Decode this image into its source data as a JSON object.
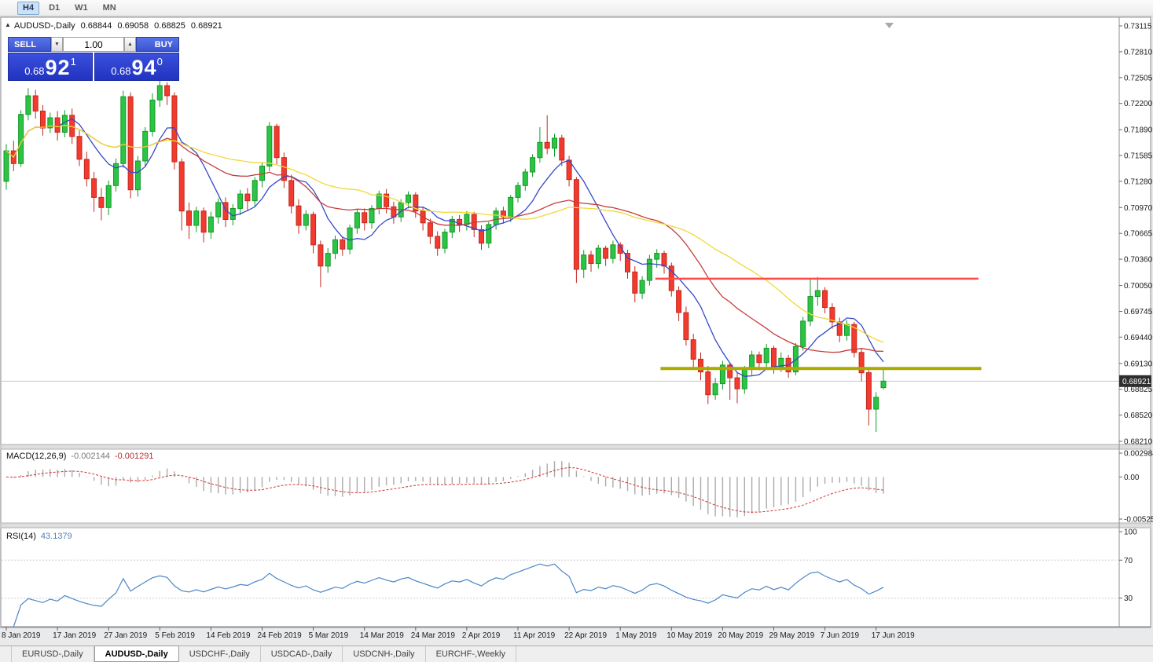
{
  "toolbar": {
    "timeframes": [
      {
        "label": "H4",
        "active": true
      },
      {
        "label": "D1",
        "active": false
      },
      {
        "label": "W1",
        "active": false
      },
      {
        "label": "MN",
        "active": false
      }
    ]
  },
  "chart_header": {
    "collapse_icon": "▲",
    "symbol": "AUDUSD-,Daily",
    "open": "0.68844",
    "high": "0.69058",
    "low": "0.68825",
    "close": "0.68921"
  },
  "trade_panel": {
    "sell_label": "SELL",
    "buy_label": "BUY",
    "volume": "1.00",
    "spin_down_icon": "▼",
    "spin_up_icon": "▲",
    "sell_price": {
      "base": "0.68",
      "big": "92",
      "sup": "1"
    },
    "buy_price": {
      "base": "0.68",
      "big": "94",
      "sup": "0"
    }
  },
  "price_axis": {
    "labels": [
      "0.73115",
      "0.72810",
      "0.72505",
      "0.72200",
      "0.71890",
      "0.71585",
      "0.71280",
      "0.70970",
      "0.70665",
      "0.70360",
      "0.70050",
      "0.69745",
      "0.69440",
      "0.69130",
      "0.68825",
      "0.68520",
      "0.68210"
    ],
    "current_price": "0.68921"
  },
  "indicators": {
    "macd": {
      "label": "MACD(12,26,9)",
      "value_main": "-0.002144",
      "value_signal": "-0.001291",
      "axis_labels": [
        "0.002984",
        "0.00",
        "-0.005256"
      ],
      "params": {
        "fast": 12,
        "slow": 26,
        "signal": 9
      },
      "histogram_color": "#ababab",
      "signal_color": "#d23434"
    },
    "rsi": {
      "label": "RSI(14)",
      "value": "43.1379",
      "axis_labels": [
        "100",
        "70",
        "30"
      ],
      "period": 14,
      "levels": [
        70,
        30
      ],
      "line_color": "#4a86c8"
    }
  },
  "chart_data": {
    "type": "candlestick",
    "symbol": "AUDUSD",
    "timeframe": "Daily",
    "title": "AUDUSD-,Daily",
    "ylim": [
      0.6821,
      0.73115
    ],
    "x_label_every": 7,
    "x_labels": [
      "8 Jan 2019",
      "17 Jan 2019",
      "27 Jan 2019",
      "5 Feb 2019",
      "14 Feb 2019",
      "24 Feb 2019",
      "5 Mar 2019",
      "14 Mar 2019",
      "24 Mar 2019",
      "2 Apr 2019",
      "11 Apr 2019",
      "22 Apr 2019",
      "1 May 2019",
      "10 May 2019",
      "20 May 2019",
      "29 May 2019",
      "7 Jun 2019",
      "17 Jun 2019"
    ],
    "current_price": 0.68921,
    "moving_averages": [
      {
        "period": 8,
        "color": "#3848c8"
      },
      {
        "period": 21,
        "color": "#c83c3c"
      },
      {
        "period": 34,
        "color": "#f0d838"
      }
    ],
    "hlines": [
      {
        "price": 0.7013,
        "color": "#ff4a4a",
        "width": 2.5,
        "from_index": 88.8,
        "to_index": 133.0
      },
      {
        "price": 0.6907,
        "color": "#aaaa00",
        "width": 4,
        "from_index": 89.5,
        "to_index": 133.4
      }
    ],
    "candles": [
      [
        0.7128,
        0.7172,
        0.7118,
        0.7164
      ],
      [
        0.7164,
        0.7176,
        0.714,
        0.7149
      ],
      [
        0.7149,
        0.7212,
        0.7145,
        0.7207
      ],
      [
        0.7207,
        0.7238,
        0.72,
        0.7229
      ],
      [
        0.7229,
        0.7236,
        0.7202,
        0.7211
      ],
      [
        0.7211,
        0.7218,
        0.7182,
        0.7191
      ],
      [
        0.7191,
        0.7209,
        0.7185,
        0.7203
      ],
      [
        0.7203,
        0.7211,
        0.7176,
        0.7186
      ],
      [
        0.7186,
        0.7212,
        0.718,
        0.7206
      ],
      [
        0.7206,
        0.7214,
        0.7172,
        0.7181
      ],
      [
        0.7181,
        0.7188,
        0.7146,
        0.7154
      ],
      [
        0.7154,
        0.7163,
        0.7122,
        0.7131
      ],
      [
        0.7131,
        0.7139,
        0.7092,
        0.7109
      ],
      [
        0.7109,
        0.712,
        0.7082,
        0.7097
      ],
      [
        0.7097,
        0.7129,
        0.7088,
        0.7123
      ],
      [
        0.7123,
        0.7155,
        0.7116,
        0.7149
      ],
      [
        0.7149,
        0.7235,
        0.7144,
        0.7228
      ],
      [
        0.7228,
        0.7233,
        0.7108,
        0.7118
      ],
      [
        0.7118,
        0.7158,
        0.711,
        0.7152
      ],
      [
        0.7152,
        0.7192,
        0.7146,
        0.7187
      ],
      [
        0.7187,
        0.7232,
        0.7181,
        0.7224
      ],
      [
        0.7224,
        0.7248,
        0.7216,
        0.7241
      ],
      [
        0.7241,
        0.7245,
        0.7218,
        0.7229
      ],
      [
        0.7229,
        0.7233,
        0.7142,
        0.7151
      ],
      [
        0.7151,
        0.7155,
        0.707,
        0.7093
      ],
      [
        0.7093,
        0.7103,
        0.706,
        0.7076
      ],
      [
        0.7076,
        0.7098,
        0.7068,
        0.7093
      ],
      [
        0.7093,
        0.7097,
        0.7056,
        0.7068
      ],
      [
        0.7068,
        0.7092,
        0.706,
        0.7086
      ],
      [
        0.7086,
        0.7108,
        0.7078,
        0.7103
      ],
      [
        0.7103,
        0.7109,
        0.7074,
        0.7083
      ],
      [
        0.7083,
        0.7101,
        0.7076,
        0.7096
      ],
      [
        0.7096,
        0.7118,
        0.7088,
        0.7113
      ],
      [
        0.7113,
        0.712,
        0.7094,
        0.7105
      ],
      [
        0.7105,
        0.7133,
        0.7098,
        0.7129
      ],
      [
        0.7129,
        0.715,
        0.7121,
        0.7146
      ],
      [
        0.7146,
        0.7198,
        0.714,
        0.7193
      ],
      [
        0.7193,
        0.7196,
        0.7148,
        0.7156
      ],
      [
        0.7156,
        0.7162,
        0.712,
        0.7129
      ],
      [
        0.7129,
        0.7136,
        0.709,
        0.7099
      ],
      [
        0.7099,
        0.7107,
        0.7066,
        0.7076
      ],
      [
        0.7076,
        0.7094,
        0.707,
        0.7089
      ],
      [
        0.7089,
        0.7092,
        0.7043,
        0.7053
      ],
      [
        0.7053,
        0.7058,
        0.7003,
        0.7028
      ],
      [
        0.7028,
        0.7049,
        0.702,
        0.7043
      ],
      [
        0.7043,
        0.7064,
        0.7036,
        0.7059
      ],
      [
        0.7059,
        0.7063,
        0.704,
        0.7048
      ],
      [
        0.7048,
        0.7077,
        0.7042,
        0.7073
      ],
      [
        0.7073,
        0.7095,
        0.7066,
        0.7091
      ],
      [
        0.7091,
        0.7096,
        0.707,
        0.7079
      ],
      [
        0.7079,
        0.71,
        0.7072,
        0.7096
      ],
      [
        0.7096,
        0.7117,
        0.7089,
        0.7113
      ],
      [
        0.7113,
        0.7119,
        0.709,
        0.7098
      ],
      [
        0.7098,
        0.7104,
        0.7078,
        0.7086
      ],
      [
        0.7086,
        0.7107,
        0.708,
        0.7103
      ],
      [
        0.7103,
        0.7116,
        0.7096,
        0.7112
      ],
      [
        0.7112,
        0.7115,
        0.7085,
        0.7093
      ],
      [
        0.7093,
        0.7098,
        0.707,
        0.7079
      ],
      [
        0.7079,
        0.7084,
        0.7054,
        0.7063
      ],
      [
        0.7063,
        0.7069,
        0.704,
        0.7049
      ],
      [
        0.7049,
        0.7072,
        0.7043,
        0.7068
      ],
      [
        0.7068,
        0.7087,
        0.7061,
        0.7083
      ],
      [
        0.7083,
        0.7088,
        0.7068,
        0.7077
      ],
      [
        0.7077,
        0.7093,
        0.707,
        0.7089
      ],
      [
        0.7089,
        0.7092,
        0.7062,
        0.7071
      ],
      [
        0.7071,
        0.7076,
        0.7047,
        0.7055
      ],
      [
        0.7055,
        0.708,
        0.7049,
        0.7077
      ],
      [
        0.7077,
        0.7097,
        0.7071,
        0.7093
      ],
      [
        0.7093,
        0.7098,
        0.7078,
        0.7086
      ],
      [
        0.7086,
        0.7112,
        0.708,
        0.7109
      ],
      [
        0.7109,
        0.7127,
        0.7103,
        0.7123
      ],
      [
        0.7123,
        0.7143,
        0.7117,
        0.7139
      ],
      [
        0.7139,
        0.716,
        0.7133,
        0.7156
      ],
      [
        0.7156,
        0.7192,
        0.715,
        0.7174
      ],
      [
        0.7174,
        0.7206,
        0.716,
        0.7167
      ],
      [
        0.7167,
        0.7184,
        0.7157,
        0.7179
      ],
      [
        0.7179,
        0.7183,
        0.7146,
        0.7153
      ],
      [
        0.7153,
        0.7158,
        0.7122,
        0.713
      ],
      [
        0.713,
        0.7133,
        0.7008,
        0.7024
      ],
      [
        0.7024,
        0.7047,
        0.7014,
        0.7041
      ],
      [
        0.7041,
        0.7046,
        0.7021,
        0.7031
      ],
      [
        0.7031,
        0.7053,
        0.7025,
        0.7049
      ],
      [
        0.7049,
        0.7052,
        0.7028,
        0.7037
      ],
      [
        0.7037,
        0.7058,
        0.7031,
        0.7053
      ],
      [
        0.7053,
        0.7056,
        0.7034,
        0.7043
      ],
      [
        0.7043,
        0.7047,
        0.7013,
        0.7021
      ],
      [
        0.7021,
        0.7028,
        0.6985,
        0.6996
      ],
      [
        0.6996,
        0.7016,
        0.6989,
        0.7011
      ],
      [
        0.7011,
        0.7041,
        0.7005,
        0.7036
      ],
      [
        0.7036,
        0.7048,
        0.7026,
        0.7043
      ],
      [
        0.7043,
        0.7046,
        0.7019,
        0.7028
      ],
      [
        0.7028,
        0.7032,
        0.6992,
        0.6999
      ],
      [
        0.6999,
        0.7004,
        0.6963,
        0.6973
      ],
      [
        0.6973,
        0.698,
        0.6934,
        0.6941
      ],
      [
        0.6941,
        0.6948,
        0.6908,
        0.6918
      ],
      [
        0.6918,
        0.6926,
        0.6893,
        0.6903
      ],
      [
        0.6903,
        0.691,
        0.6865,
        0.6876
      ],
      [
        0.6876,
        0.6896,
        0.687,
        0.6889
      ],
      [
        0.6889,
        0.6916,
        0.6882,
        0.6911
      ],
      [
        0.6911,
        0.6914,
        0.687,
        0.6896
      ],
      [
        0.6896,
        0.6902,
        0.6866,
        0.6883
      ],
      [
        0.6883,
        0.691,
        0.6877,
        0.6906
      ],
      [
        0.6906,
        0.6928,
        0.6899,
        0.6923
      ],
      [
        0.6923,
        0.6927,
        0.6905,
        0.6914
      ],
      [
        0.6914,
        0.6936,
        0.6908,
        0.6931
      ],
      [
        0.6931,
        0.6934,
        0.6901,
        0.6909
      ],
      [
        0.6909,
        0.6926,
        0.6903,
        0.6919
      ],
      [
        0.6919,
        0.6923,
        0.6896,
        0.6903
      ],
      [
        0.6903,
        0.6937,
        0.6899,
        0.6933
      ],
      [
        0.6933,
        0.6968,
        0.6928,
        0.6963
      ],
      [
        0.6963,
        0.7012,
        0.6957,
        0.6992
      ],
      [
        0.6992,
        0.7015,
        0.6981,
        0.6999
      ],
      [
        0.6999,
        0.7003,
        0.6972,
        0.6979
      ],
      [
        0.6979,
        0.6984,
        0.6954,
        0.6962
      ],
      [
        0.6962,
        0.6967,
        0.6938,
        0.6946
      ],
      [
        0.6946,
        0.6964,
        0.694,
        0.6959
      ],
      [
        0.6959,
        0.6962,
        0.692,
        0.6926
      ],
      [
        0.6926,
        0.6931,
        0.6892,
        0.6902
      ],
      [
        0.6902,
        0.6906,
        0.684,
        0.6859
      ],
      [
        0.6859,
        0.6879,
        0.6832,
        0.6873
      ],
      [
        0.68844,
        0.69058,
        0.68825,
        0.68921
      ]
    ]
  },
  "tabs": [
    {
      "label": "EURUSD-,Daily",
      "active": false
    },
    {
      "label": "AUDUSD-,Daily",
      "active": true
    },
    {
      "label": "USDCHF-,Daily",
      "active": false
    },
    {
      "label": "USDCAD-,Daily",
      "active": false
    },
    {
      "label": "USDCNH-,Daily",
      "active": false
    },
    {
      "label": "EURCHF-,Weekly",
      "active": false
    }
  ],
  "colors": {
    "up_fill": "#2bc444",
    "up_stroke": "#149929",
    "down_fill": "#f23b2e",
    "down_stroke": "#c22a20",
    "panel_blue": "#2a3fd0",
    "bid_line": "#c4c4c4",
    "price_tag_bg": "#2f2f2f"
  }
}
